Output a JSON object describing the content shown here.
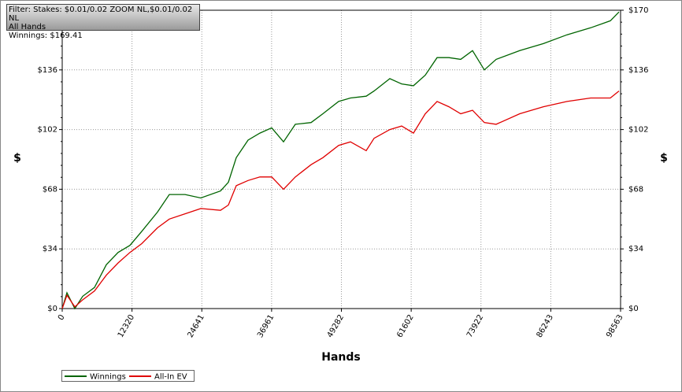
{
  "filter": {
    "stakes": "Filter: Stakes: $0.01/0.02 ZOOM NL,$0.01/0.02 NL",
    "hands": "All Hands",
    "winnings": "Winnings: $169.41"
  },
  "chart_data": {
    "type": "line",
    "xlabel": "Hands",
    "ylabel": "$",
    "y2label": "$",
    "x": [
      0,
      834,
      2224,
      3614,
      5700,
      7785,
      9870,
      11955,
      14041,
      16821,
      18906,
      21687,
      24467,
      27943,
      29333,
      30723,
      32809,
      34894,
      36979,
      39064,
      41150,
      43930,
      46015,
      48795,
      50880,
      53661,
      55051,
      57831,
      59917,
      62002,
      64087,
      66172,
      68258,
      70343,
      72428,
      74513,
      76599,
      80769,
      84940,
      89110,
      93281,
      96756,
      98285
    ],
    "series": [
      {
        "name": "Winnings",
        "color": "#006400",
        "values": [
          0,
          9,
          0,
          7,
          12,
          25,
          32,
          36,
          44,
          55,
          65,
          65,
          63,
          67,
          72,
          86,
          96,
          100,
          103,
          95,
          105,
          106,
          111,
          118,
          120,
          121,
          124,
          131,
          128,
          127,
          133,
          143,
          143,
          142,
          147,
          136,
          142,
          147,
          151,
          156,
          160,
          164,
          169
        ]
      },
      {
        "name": "All-In EV",
        "color": "#e00000",
        "values": [
          0,
          7.6,
          1,
          5,
          10,
          19,
          26,
          32,
          37,
          46,
          51,
          54,
          57,
          56,
          59,
          70,
          73,
          75,
          75,
          68,
          75,
          82,
          86,
          93,
          95,
          90,
          97,
          102,
          104,
          100,
          111,
          118,
          115,
          111,
          113,
          106,
          105,
          111,
          115,
          118,
          120,
          120,
          124
        ]
      }
    ],
    "xlim": [
      0,
      98563
    ],
    "xticks": [
      0,
      12320,
      24641,
      36961,
      49282,
      61602,
      73922,
      86243,
      98563
    ],
    "ylim": [
      0,
      170
    ],
    "yticks": [
      {
        "value": 0,
        "label": "$0"
      },
      {
        "value": 34,
        "label": "$34"
      },
      {
        "value": 68,
        "label": "$68"
      },
      {
        "value": 102,
        "label": "$102"
      },
      {
        "value": 136,
        "label": "$136"
      },
      {
        "value": 170,
        "label": "$170"
      }
    ],
    "y2lim": [
      0,
      170
    ],
    "y2ticks": [
      {
        "value": 0,
        "label": "$0"
      },
      {
        "value": 34,
        "label": "$34"
      },
      {
        "value": 68,
        "label": "$68"
      },
      {
        "value": 102,
        "label": "$102"
      },
      {
        "value": 136,
        "label": "$136"
      },
      {
        "value": 170,
        "label": "$170"
      }
    ],
    "grid": true,
    "legend": "below-left"
  }
}
